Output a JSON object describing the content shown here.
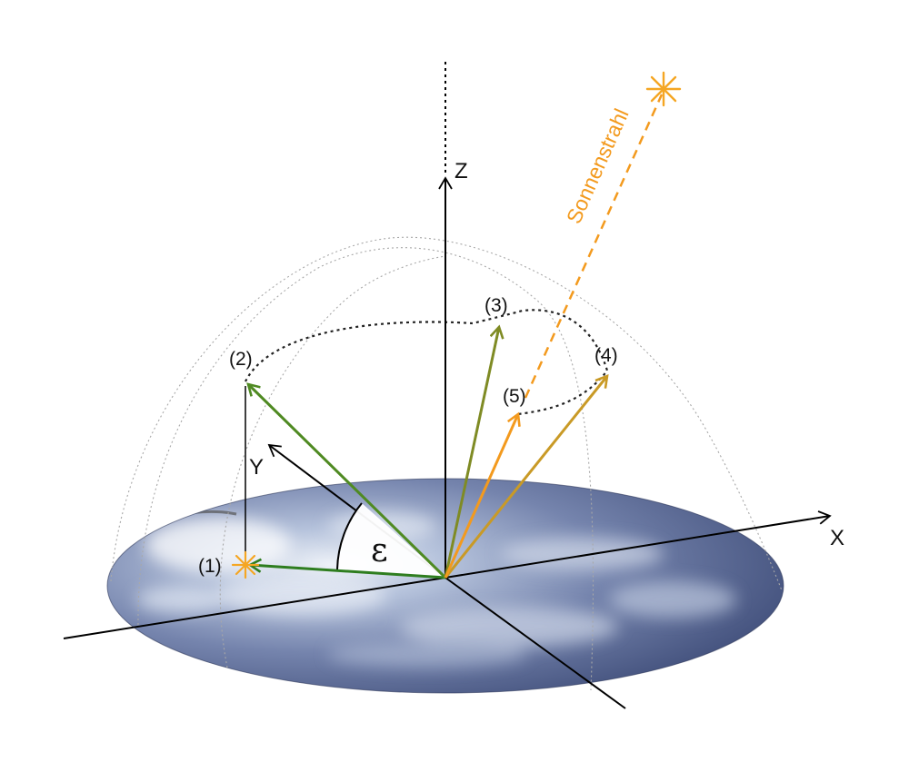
{
  "axes": {
    "x": "X",
    "y": "Y",
    "z": "Z"
  },
  "angle_symbol": "ε",
  "positions": {
    "p1": "(1)",
    "p2": "(2)",
    "p3": "(3)",
    "p4": "(4)",
    "p5": "(5)"
  },
  "sun_ray_label": "Sonnenstrahl",
  "colors": {
    "sun": "#f5a623",
    "sun_ray": "#f39a1e",
    "vector_1": "#2e7d1f",
    "vector_2": "#4f8a22",
    "vector_3": "#7f8b24",
    "vector_4": "#c99a26",
    "vector_5": "#f39a1e",
    "axis": "#000000",
    "dome_guides": "#a8a8a8",
    "sky_disc_dark": "#3e4c78",
    "sky_disc_light": "#eef2f8"
  },
  "icons": {
    "sun": "sun-star-icon"
  }
}
